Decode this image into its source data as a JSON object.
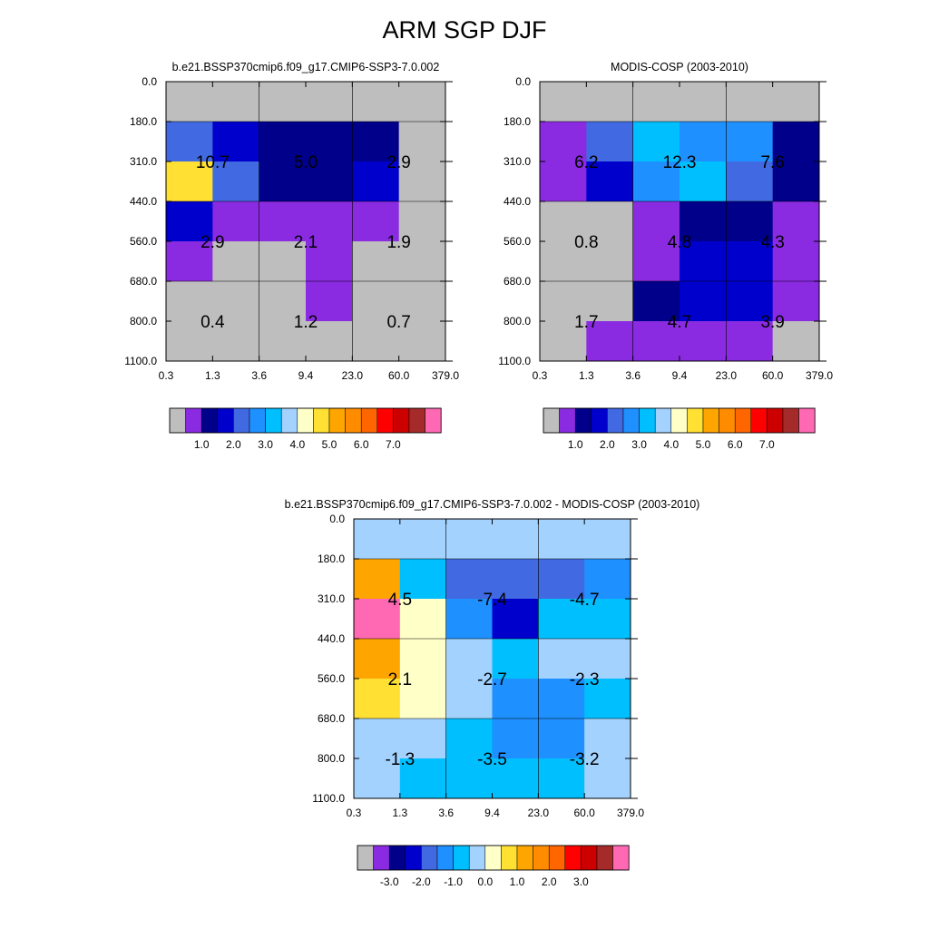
{
  "title": "ARM SGP DJF",
  "chart_data": [
    {
      "type": "heatmap",
      "title": "b.e21.BSSP370cmip6.f09_g17.CMIP6-SSP3-7.0.002",
      "x_ticks": [
        "0.3",
        "1.3",
        "3.6",
        "9.4",
        "23.0",
        "60.0",
        "379.0"
      ],
      "y_ticks": [
        "0.0",
        "180.0",
        "310.0",
        "440.0",
        "560.0",
        "680.0",
        "800.0",
        "1100.0"
      ],
      "grid": [
        [
          "gray",
          "gray",
          "gray",
          "gray",
          "gray",
          "gray"
        ],
        [
          "royalblue",
          "medblue",
          "navy",
          "navy",
          "navy",
          "gray"
        ],
        [
          "yellow",
          "royalblue",
          "navy",
          "navy",
          "medblue",
          "gray"
        ],
        [
          "medblue",
          "purple",
          "purple",
          "purple",
          "purple",
          "gray"
        ],
        [
          "purple",
          "gray",
          "gray",
          "purple",
          "gray",
          "gray"
        ],
        [
          "gray",
          "gray",
          "gray",
          "purple",
          "gray",
          "gray"
        ],
        [
          "gray",
          "gray",
          "gray",
          "gray",
          "gray",
          "gray"
        ]
      ],
      "annotations": [
        {
          "row": 0,
          "col": 0,
          "text": "10.7"
        },
        {
          "row": 0,
          "col": 1,
          "text": "5.0"
        },
        {
          "row": 0,
          "col": 2,
          "text": "2.9"
        },
        {
          "row": 1,
          "col": 0,
          "text": "2.9"
        },
        {
          "row": 1,
          "col": 1,
          "text": "2.1"
        },
        {
          "row": 1,
          "col": 2,
          "text": "1.9"
        },
        {
          "row": 2,
          "col": 0,
          "text": "0.4"
        },
        {
          "row": 2,
          "col": 1,
          "text": "1.2"
        },
        {
          "row": 2,
          "col": 2,
          "text": "0.7"
        }
      ],
      "colorbar": {
        "colors": [
          "gray",
          "purple",
          "navy",
          "medblue",
          "royalblue",
          "dodger",
          "deepsky",
          "lightsky",
          "cream",
          "yellow",
          "gold",
          "orange",
          "dkorange",
          "red",
          "crimson",
          "brown",
          "pink"
        ],
        "labels": [
          "1.0",
          "2.0",
          "3.0",
          "4.0",
          "5.0",
          "6.0",
          "7.0"
        ],
        "label_start": 2
      }
    },
    {
      "type": "heatmap",
      "title": "MODIS-COSP (2003-2010)",
      "x_ticks": [
        "0.3",
        "1.3",
        "3.6",
        "9.4",
        "23.0",
        "60.0",
        "379.0"
      ],
      "y_ticks": [
        "0.0",
        "180.0",
        "310.0",
        "440.0",
        "560.0",
        "680.0",
        "800.0",
        "1100.0"
      ],
      "grid": [
        [
          "gray",
          "gray",
          "gray",
          "gray",
          "gray",
          "gray"
        ],
        [
          "purple",
          "royalblue",
          "deepsky",
          "dodger",
          "dodger",
          "navy"
        ],
        [
          "purple",
          "medblue",
          "dodger",
          "deepsky",
          "royalblue",
          "navy"
        ],
        [
          "gray",
          "gray",
          "purple",
          "navy",
          "navy",
          "purple"
        ],
        [
          "gray",
          "gray",
          "purple",
          "medblue",
          "medblue",
          "purple"
        ],
        [
          "gray",
          "gray",
          "navy",
          "medblue",
          "medblue",
          "purple"
        ],
        [
          "gray",
          "purple",
          "purple",
          "purple",
          "purple",
          "gray"
        ]
      ],
      "annotations": [
        {
          "row": 0,
          "col": 0,
          "text": "6.2"
        },
        {
          "row": 0,
          "col": 1,
          "text": "12.3"
        },
        {
          "row": 0,
          "col": 2,
          "text": "7.6"
        },
        {
          "row": 1,
          "col": 0,
          "text": "0.8"
        },
        {
          "row": 1,
          "col": 1,
          "text": "4.8"
        },
        {
          "row": 1,
          "col": 2,
          "text": "4.3"
        },
        {
          "row": 2,
          "col": 0,
          "text": "1.7"
        },
        {
          "row": 2,
          "col": 1,
          "text": "4.7"
        },
        {
          "row": 2,
          "col": 2,
          "text": "3.9"
        }
      ],
      "colorbar": {
        "colors": [
          "gray",
          "purple",
          "navy",
          "medblue",
          "royalblue",
          "dodger",
          "deepsky",
          "lightsky",
          "cream",
          "yellow",
          "gold",
          "orange",
          "dkorange",
          "red",
          "crimson",
          "brown",
          "pink"
        ],
        "labels": [
          "1.0",
          "2.0",
          "3.0",
          "4.0",
          "5.0",
          "6.0",
          "7.0"
        ],
        "label_start": 2
      }
    },
    {
      "type": "heatmap",
      "title": "b.e21.BSSP370cmip6.f09_g17.CMIP6-SSP3-7.0.002 - MODIS-COSP (2003-2010)",
      "x_ticks": [
        "0.3",
        "1.3",
        "3.6",
        "9.4",
        "23.0",
        "60.0",
        "379.0"
      ],
      "y_ticks": [
        "0.0",
        "180.0",
        "310.0",
        "440.0",
        "560.0",
        "680.0",
        "800.0",
        "1100.0"
      ],
      "grid": [
        [
          "lightsky",
          "lightsky",
          "lightsky",
          "lightsky",
          "lightsky",
          "lightsky"
        ],
        [
          "gold",
          "deepsky",
          "royalblue",
          "royalblue",
          "royalblue",
          "dodger"
        ],
        [
          "pink",
          "cream",
          "dodger",
          "medblue",
          "deepsky",
          "deepsky"
        ],
        [
          "gold",
          "cream",
          "lightsky",
          "deepsky",
          "lightsky",
          "lightsky"
        ],
        [
          "yellow",
          "cream",
          "lightsky",
          "dodger",
          "dodger",
          "deepsky"
        ],
        [
          "lightsky",
          "lightsky",
          "deepsky",
          "dodger",
          "dodger",
          "lightsky"
        ],
        [
          "lightsky",
          "deepsky",
          "deepsky",
          "deepsky",
          "deepsky",
          "lightsky"
        ]
      ],
      "annotations": [
        {
          "row": 0,
          "col": 0,
          "text": "4.5"
        },
        {
          "row": 0,
          "col": 1,
          "text": "-7.4"
        },
        {
          "row": 0,
          "col": 2,
          "text": "-4.7"
        },
        {
          "row": 1,
          "col": 0,
          "text": "2.1"
        },
        {
          "row": 1,
          "col": 1,
          "text": "-2.7"
        },
        {
          "row": 1,
          "col": 2,
          "text": "-2.3"
        },
        {
          "row": 2,
          "col": 0,
          "text": "-1.3"
        },
        {
          "row": 2,
          "col": 1,
          "text": "-3.5"
        },
        {
          "row": 2,
          "col": 2,
          "text": "-3.2"
        }
      ],
      "colorbar": {
        "colors": [
          "gray",
          "purple",
          "navy",
          "medblue",
          "royalblue",
          "dodger",
          "deepsky",
          "lightsky",
          "cream",
          "yellow",
          "gold",
          "orange",
          "dkorange",
          "red",
          "crimson",
          "brown",
          "pink"
        ],
        "labels": [
          "-3.0",
          "-2.0",
          "-1.0",
          "0.0",
          "1.0",
          "2.0",
          "3.0"
        ],
        "label_start": 2
      }
    }
  ],
  "palette": {
    "gray": "#bebebe",
    "purple": "#8a2be2",
    "navy": "#00008b",
    "medblue": "#0000cd",
    "royalblue": "#4169e1",
    "dodger": "#1e90ff",
    "deepsky": "#00bfff",
    "lightsky": "#a3d2ff",
    "cream": "#ffffc8",
    "yellow": "#ffe033",
    "gold": "#ffa500",
    "orange": "#ff8c00",
    "dkorange": "#ff6600",
    "red": "#ff0000",
    "crimson": "#cd0000",
    "brown": "#a52a2a",
    "pink": "#ff69b4"
  }
}
